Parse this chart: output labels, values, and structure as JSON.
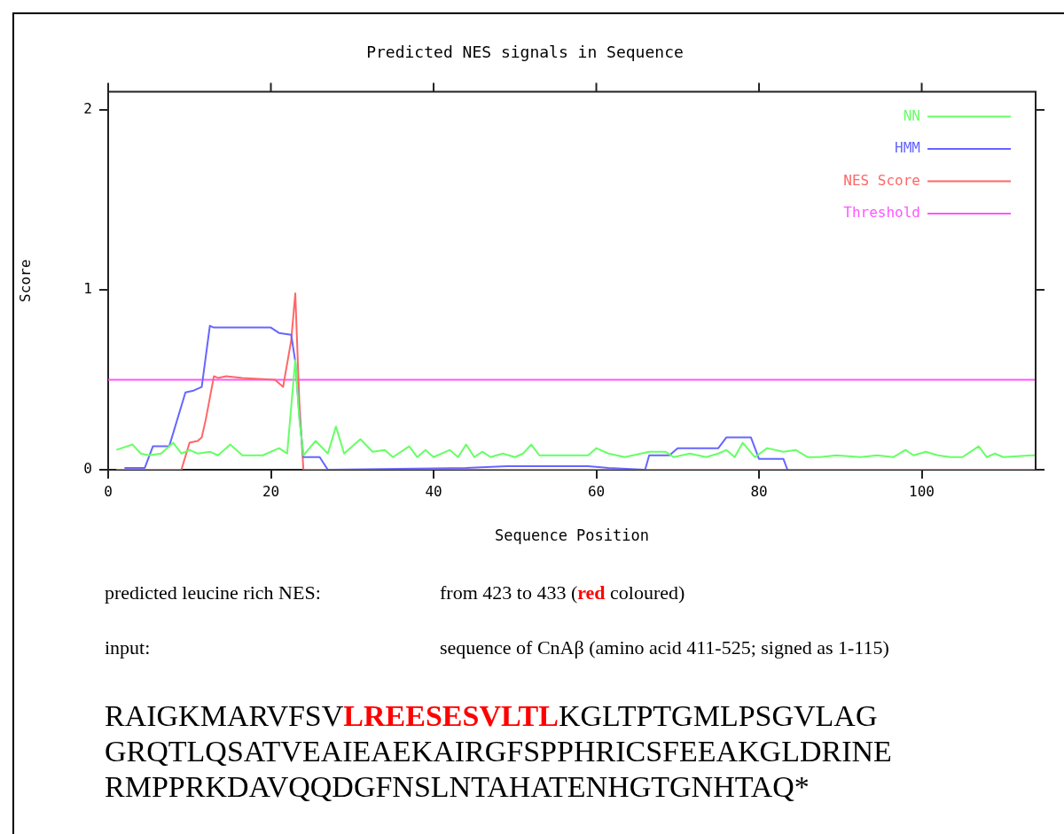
{
  "chart_data": {
    "type": "line",
    "title": "Predicted NES signals in Sequence",
    "xlabel": "Sequence Position",
    "ylabel": "Score",
    "xlim": [
      0,
      114
    ],
    "xticks": [
      0,
      20,
      40,
      60,
      80,
      100
    ],
    "ylim": [
      0,
      2.1
    ],
    "yticks": [
      0,
      1,
      2
    ],
    "grid": false,
    "legend": "top right",
    "marker": "none",
    "line_style": "solid",
    "series": [
      {
        "name": "NN",
        "color": "#66ff66",
        "x": [
          1,
          3,
          4,
          5,
          6.5,
          8,
          9,
          10,
          11,
          12.5,
          13.5,
          15,
          16.5,
          19,
          21,
          22,
          22.5,
          23,
          23.5,
          24,
          25.5,
          27,
          28,
          29,
          31,
          32.5,
          34,
          35,
          37,
          38,
          39,
          40,
          42,
          43,
          44,
          45,
          46,
          47,
          48.5,
          50,
          51,
          52,
          53,
          59,
          60,
          61.5,
          63.5,
          64.5,
          66.5,
          68.5,
          69.5,
          71.5,
          73.5,
          75,
          76,
          77,
          78,
          79.5,
          81,
          83,
          84.5,
          86,
          87.5,
          89.5,
          92.5,
          94.5,
          96.5,
          98,
          99,
          100.5,
          102,
          103.5,
          105,
          107,
          108,
          109,
          110,
          113.5,
          114
        ],
        "values": [
          0.11,
          0.14,
          0.09,
          0.08,
          0.09,
          0.15,
          0.09,
          0.11,
          0.09,
          0.1,
          0.08,
          0.14,
          0.08,
          0.08,
          0.12,
          0.09,
          0.35,
          0.61,
          0.28,
          0.08,
          0.16,
          0.09,
          0.24,
          0.09,
          0.17,
          0.1,
          0.11,
          0.07,
          0.13,
          0.07,
          0.11,
          0.07,
          0.11,
          0.07,
          0.14,
          0.07,
          0.1,
          0.07,
          0.09,
          0.07,
          0.09,
          0.14,
          0.08,
          0.08,
          0.12,
          0.09,
          0.07,
          0.08,
          0.1,
          0.1,
          0.07,
          0.09,
          0.07,
          0.09,
          0.11,
          0.07,
          0.15,
          0.07,
          0.12,
          0.1,
          0.11,
          0.07,
          0.07,
          0.08,
          0.07,
          0.08,
          0.07,
          0.11,
          0.08,
          0.1,
          0.08,
          0.07,
          0.07,
          0.13,
          0.07,
          0.09,
          0.07,
          0.08,
          0.08
        ]
      },
      {
        "name": "HMM",
        "color": "#6666ff",
        "x": [
          2,
          4.5,
          5.5,
          7.5,
          9.5,
          10.5,
          11.5,
          12.5,
          13,
          20,
          21,
          22.5,
          23,
          23.5,
          24,
          26,
          27,
          44,
          49,
          59,
          61.5,
          66,
          66.5,
          69,
          70,
          75,
          76,
          79,
          80,
          83,
          83.5
        ],
        "values": [
          0.01,
          0.01,
          0.13,
          0.13,
          0.43,
          0.44,
          0.46,
          0.8,
          0.79,
          0.79,
          0.76,
          0.75,
          0.6,
          0.3,
          0.07,
          0.07,
          0,
          0.01,
          0.02,
          0.02,
          0.01,
          0,
          0.08,
          0.08,
          0.12,
          0.12,
          0.18,
          0.18,
          0.06,
          0.06,
          0
        ]
      },
      {
        "name": "NES Score",
        "color": "#ff6666",
        "x": [
          1,
          9,
          10,
          11,
          11.5,
          12,
          13,
          13.5,
          14.5,
          16.5,
          20.5,
          21.5,
          22.5,
          23,
          23.5,
          24,
          114
        ],
        "values": [
          0,
          0,
          0.15,
          0.16,
          0.18,
          0.28,
          0.52,
          0.51,
          0.52,
          0.51,
          0.5,
          0.46,
          0.72,
          0.98,
          0.37,
          0,
          0
        ]
      },
      {
        "name": "Threshold",
        "color": "#ff55ff",
        "x": [
          0,
          114
        ],
        "values": [
          0.5,
          0.5
        ]
      }
    ],
    "annotations": [
      "predicted leucine rich NES:",
      "from 423 to 433 (",
      "red",
      " coloured)",
      "input:",
      "sequence of CnAβ (amino acid 411-525; signed as 1-115)",
      "RAIGKMARVFSV",
      "LREESESVLTL",
      "KGLTPTGMLPSGVLAG",
      "GRQTLQSATVEAIEAEKAIRGFSPPHRICSFEEAKGLDRINE",
      "RMPPRKDAVQQDGFNSLNTAHATENHGTGNHTAQ*"
    ]
  }
}
